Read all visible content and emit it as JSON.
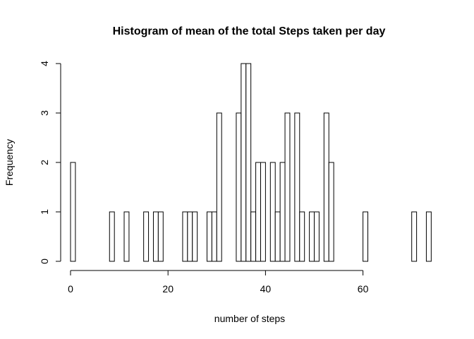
{
  "chart_data": {
    "type": "bar",
    "title": "Histogram of mean of the total Steps taken per day",
    "xlabel": "number of steps",
    "ylabel": "Frequency",
    "bin_width": 1,
    "xlim": [
      0,
      74
    ],
    "ylim": [
      0,
      4
    ],
    "xticks": [
      0,
      20,
      40,
      60
    ],
    "yticks": [
      0,
      1,
      2,
      3,
      4
    ],
    "bins": [
      {
        "x0": 0,
        "x1": 1,
        "count": 2
      },
      {
        "x0": 8,
        "x1": 9,
        "count": 1
      },
      {
        "x0": 11,
        "x1": 12,
        "count": 1
      },
      {
        "x0": 15,
        "x1": 16,
        "count": 1
      },
      {
        "x0": 17,
        "x1": 18,
        "count": 1
      },
      {
        "x0": 18,
        "x1": 19,
        "count": 1
      },
      {
        "x0": 23,
        "x1": 24,
        "count": 1
      },
      {
        "x0": 24,
        "x1": 25,
        "count": 1
      },
      {
        "x0": 25,
        "x1": 26,
        "count": 1
      },
      {
        "x0": 28,
        "x1": 29,
        "count": 1
      },
      {
        "x0": 29,
        "x1": 30,
        "count": 1
      },
      {
        "x0": 30,
        "x1": 31,
        "count": 3
      },
      {
        "x0": 34,
        "x1": 35,
        "count": 3
      },
      {
        "x0": 35,
        "x1": 36,
        "count": 4
      },
      {
        "x0": 36,
        "x1": 37,
        "count": 4
      },
      {
        "x0": 37,
        "x1": 38,
        "count": 1
      },
      {
        "x0": 38,
        "x1": 39,
        "count": 2
      },
      {
        "x0": 39,
        "x1": 40,
        "count": 2
      },
      {
        "x0": 41,
        "x1": 42,
        "count": 2
      },
      {
        "x0": 42,
        "x1": 43,
        "count": 1
      },
      {
        "x0": 43,
        "x1": 44,
        "count": 2
      },
      {
        "x0": 44,
        "x1": 45,
        "count": 3
      },
      {
        "x0": 46,
        "x1": 47,
        "count": 3
      },
      {
        "x0": 47,
        "x1": 48,
        "count": 1
      },
      {
        "x0": 49,
        "x1": 50,
        "count": 1
      },
      {
        "x0": 50,
        "x1": 51,
        "count": 1
      },
      {
        "x0": 52,
        "x1": 53,
        "count": 3
      },
      {
        "x0": 53,
        "x1": 54,
        "count": 2
      },
      {
        "x0": 60,
        "x1": 61,
        "count": 1
      },
      {
        "x0": 70,
        "x1": 71,
        "count": 1
      },
      {
        "x0": 73,
        "x1": 74,
        "count": 1
      }
    ]
  }
}
